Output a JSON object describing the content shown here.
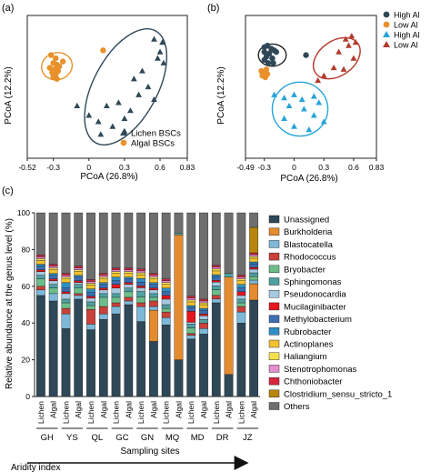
{
  "colors": {
    "lichen": "#2f4858",
    "algal": "#e8902a",
    "high_al": "#26a4d8",
    "low_al": "#b23a2c",
    "axis": "#222222"
  },
  "chart_data": [
    {
      "type": "scatter",
      "panel_label": "(a)",
      "xlabel": "PCoA (26.8%)",
      "ylabel": "PCoA (12.2%)",
      "xlim": [
        -0.52,
        0.83
      ],
      "ylim": [
        -0.45,
        0.45
      ],
      "xticks": [
        -0.52,
        -0.3,
        0,
        0.3,
        0.6,
        0.83
      ],
      "xtick_labels": [
        "-0.52",
        "-0.3",
        "0",
        "0.3",
        "0.6",
        "0.83"
      ],
      "legend_position": "bottom-right",
      "legend": [
        "Lichen BSCs",
        "Algal BSCs"
      ],
      "series": [
        {
          "name": "Lichen BSCs",
          "marker": "triangle",
          "color": "#2f4858",
          "points": [
            [
              0.55,
              0.3
            ],
            [
              0.62,
              0.28
            ],
            [
              0.6,
              0.22
            ],
            [
              0.58,
              0.18
            ],
            [
              0.63,
              0.15
            ],
            [
              0.45,
              0.1
            ],
            [
              0.38,
              0.05
            ],
            [
              0.5,
              0.0
            ],
            [
              0.42,
              -0.05
            ],
            [
              0.55,
              -0.08
            ],
            [
              0.35,
              -0.15
            ],
            [
              0.25,
              -0.1
            ],
            [
              0.15,
              -0.12
            ],
            [
              0.3,
              -0.2
            ],
            [
              0.2,
              -0.25
            ],
            [
              0.08,
              -0.22
            ],
            [
              0.0,
              -0.18
            ],
            [
              -0.1,
              -0.12
            ],
            [
              0.1,
              -0.3
            ],
            [
              0.3,
              -0.28
            ]
          ]
        },
        {
          "name": "Algal BSCs",
          "marker": "circle",
          "color": "#e8902a",
          "points": [
            [
              -0.32,
              0.2
            ],
            [
              -0.28,
              0.18
            ],
            [
              -0.3,
              0.15
            ],
            [
              -0.27,
              0.14
            ],
            [
              -0.33,
              0.12
            ],
            [
              -0.29,
              0.11
            ],
            [
              -0.25,
              0.13
            ],
            [
              -0.31,
              0.09
            ],
            [
              -0.28,
              0.08
            ],
            [
              -0.26,
              0.1
            ],
            [
              -0.3,
              0.06
            ],
            [
              -0.27,
              0.05
            ],
            [
              -0.22,
              0.16
            ],
            [
              0.12,
              0.23
            ]
          ]
        }
      ],
      "ellipses": [
        {
          "color": "#e8902a",
          "cx": -0.27,
          "cy": 0.13,
          "rx": 0.13,
          "ry": 0.085,
          "angle": -15
        },
        {
          "color": "#2f4858",
          "cx": 0.31,
          "cy": 0.0,
          "rx": 0.27,
          "ry": 0.4,
          "angle": 28
        }
      ]
    },
    {
      "type": "scatter",
      "panel_label": "(b)",
      "xlabel": "PCoA (26.8%)",
      "ylabel": "PCoA (12.2%)",
      "xlim": [
        -0.49,
        0.83
      ],
      "ylim": [
        -0.45,
        0.45
      ],
      "xticks": [
        -0.49,
        -0.3,
        0,
        0.3,
        0.6,
        0.83
      ],
      "xtick_labels": [
        "-0.49",
        "-0.3",
        "0",
        "0.3",
        "0.6",
        "0.83"
      ],
      "legend_position": "top-right",
      "legend": [
        "High Al",
        "Low Al",
        "High Al",
        "Low Al"
      ],
      "series": [
        {
          "name": "High Al",
          "marker": "circle",
          "color": "#2f4858",
          "points": [
            [
              -0.3,
              0.25
            ],
            [
              -0.27,
              0.26
            ],
            [
              -0.23,
              0.24
            ],
            [
              -0.3,
              0.22
            ],
            [
              -0.25,
              0.21
            ],
            [
              -0.2,
              0.23
            ],
            [
              -0.28,
              0.19
            ],
            [
              -0.22,
              0.18
            ],
            [
              -0.3,
              0.17
            ],
            [
              -0.18,
              0.22
            ],
            [
              -0.26,
              0.15
            ],
            [
              -0.21,
              0.15
            ],
            [
              0.12,
              0.2
            ]
          ]
        },
        {
          "name": "Low Al",
          "marker": "circle",
          "color": "#e8902a",
          "points": [
            [
              -0.33,
              0.1
            ],
            [
              -0.3,
              0.09
            ],
            [
              -0.28,
              0.11
            ],
            [
              -0.32,
              0.07
            ],
            [
              -0.29,
              0.06
            ],
            [
              -0.27,
              0.08
            ]
          ]
        },
        {
          "name": "High Al",
          "marker": "triangle",
          "color": "#26a4d8",
          "points": [
            [
              -0.2,
              -0.05
            ],
            [
              -0.1,
              -0.07
            ],
            [
              0.0,
              -0.05
            ],
            [
              0.08,
              -0.08
            ],
            [
              0.2,
              -0.06
            ],
            [
              0.25,
              -0.1
            ],
            [
              -0.05,
              -0.12
            ],
            [
              0.1,
              -0.14
            ],
            [
              0.2,
              -0.18
            ],
            [
              -0.1,
              -0.2
            ],
            [
              0.0,
              -0.25
            ],
            [
              0.15,
              -0.27
            ],
            [
              0.3,
              -0.22
            ]
          ]
        },
        {
          "name": "Low Al",
          "marker": "triangle",
          "color": "#b23a2c",
          "points": [
            [
              0.58,
              0.32
            ],
            [
              0.52,
              0.3
            ],
            [
              0.62,
              0.28
            ],
            [
              0.55,
              0.26
            ],
            [
              0.45,
              0.22
            ],
            [
              0.6,
              0.18
            ],
            [
              0.4,
              0.12
            ],
            [
              0.5,
              0.11
            ],
            [
              0.3,
              0.07
            ],
            [
              0.24,
              0.04
            ]
          ]
        }
      ],
      "ellipses": [
        {
          "color": "#222222",
          "cx": -0.22,
          "cy": 0.2,
          "rx": 0.14,
          "ry": 0.07,
          "angle": 0
        },
        {
          "color": "#b23a2c",
          "cx": 0.43,
          "cy": 0.18,
          "rx": 0.26,
          "ry": 0.11,
          "angle": -35
        },
        {
          "color": "#26a4d8",
          "cx": 0.06,
          "cy": -0.14,
          "rx": 0.28,
          "ry": 0.17,
          "angle": 0
        }
      ]
    },
    {
      "type": "bar",
      "stacked": true,
      "panel_label": "(c)",
      "ylabel": "Relative abundance at the genus level (%)",
      "xlabel": "Sampling sites",
      "arrow_label": "Aridity index",
      "ylim": [
        0,
        100
      ],
      "yticks": [
        0,
        20,
        40,
        60,
        80,
        100
      ],
      "legend_position": "right",
      "groups": [
        "GH",
        "YS",
        "QL",
        "GC",
        "GN",
        "MQ",
        "MD",
        "DR",
        "JZ"
      ],
      "categories": [
        "Lichen",
        "Algal",
        "Lichen",
        "Algal",
        "Lichen",
        "Algal",
        "Lichen",
        "Algal",
        "Lichen",
        "Algal",
        "Lichen",
        "Algal",
        "Lichen",
        "Algal",
        "Lichen",
        "Algal",
        "Lichen",
        "Algal"
      ],
      "series": [
        {
          "name": "Unassigned",
          "color": "#2f4858",
          "values": [
            55,
            52,
            37,
            53,
            36,
            42,
            45,
            50,
            40,
            30,
            39,
            20,
            31,
            34,
            50,
            12,
            40,
            53
          ]
        },
        {
          "name": "Burkholderia",
          "color": "#e48b30",
          "values": [
            0,
            0,
            0,
            0,
            0,
            0,
            0,
            0,
            0,
            17,
            0,
            68,
            0,
            0,
            0,
            53,
            0,
            9
          ]
        },
        {
          "name": "Blastocatella",
          "color": "#7db8d8",
          "values": [
            3,
            4,
            8,
            2,
            3,
            3,
            4,
            2,
            8,
            2,
            4,
            0,
            2,
            3,
            2,
            0,
            6,
            2
          ]
        },
        {
          "name": "Rhodococcus",
          "color": "#c9413a",
          "values": [
            2,
            0,
            3,
            1,
            8,
            4,
            2,
            2,
            2,
            3,
            3,
            0,
            1,
            3,
            2,
            0,
            3,
            0
          ]
        },
        {
          "name": "Bryobacter",
          "color": "#6dbd8a",
          "values": [
            4,
            3,
            3,
            3,
            2,
            5,
            3,
            3,
            3,
            2,
            2,
            0,
            3,
            0,
            3,
            0,
            2,
            2
          ]
        },
        {
          "name": "Sphingomonas",
          "color": "#4fa0a0",
          "values": [
            2,
            2,
            2,
            2,
            2,
            2,
            2,
            2,
            3,
            2,
            2,
            1,
            2,
            2,
            2,
            2,
            2,
            2
          ]
        },
        {
          "name": "Pseudonocardia",
          "color": "#a6c8e0",
          "values": [
            2,
            2,
            3,
            1,
            2,
            2,
            3,
            2,
            2,
            2,
            3,
            0,
            1,
            2,
            2,
            0,
            2,
            2
          ]
        },
        {
          "name": "Mucilaginibacter",
          "color": "#e5161d",
          "values": [
            1,
            1,
            1,
            1,
            1,
            1,
            2,
            1,
            1,
            1,
            2,
            0,
            6,
            1,
            1,
            0,
            2,
            1
          ]
        },
        {
          "name": "Methylobacterium",
          "color": "#3c6eb0",
          "values": [
            2,
            2,
            2,
            2,
            2,
            2,
            2,
            2,
            2,
            2,
            2,
            0,
            2,
            2,
            2,
            0,
            2,
            2
          ]
        },
        {
          "name": "Rubrobacter",
          "color": "#2f8fc5",
          "values": [
            1,
            1,
            3,
            1,
            2,
            1,
            2,
            1,
            2,
            1,
            2,
            0,
            1,
            1,
            1,
            0,
            2,
            1
          ]
        },
        {
          "name": "Actinoplanes",
          "color": "#f2c230",
          "values": [
            2,
            2,
            2,
            2,
            2,
            2,
            2,
            2,
            2,
            2,
            2,
            0,
            2,
            2,
            2,
            0,
            2,
            2
          ]
        },
        {
          "name": "Haliangium",
          "color": "#f6e04a",
          "values": [
            1,
            1,
            1,
            1,
            1,
            1,
            1,
            1,
            1,
            1,
            1,
            0,
            1,
            1,
            1,
            0,
            1,
            1
          ]
        },
        {
          "name": "Stenotrophomonas",
          "color": "#e28fcf",
          "values": [
            1,
            1,
            1,
            1,
            1,
            1,
            1,
            1,
            1,
            1,
            1,
            0,
            1,
            1,
            1,
            0,
            1,
            1
          ]
        },
        {
          "name": "Chthoniobacter",
          "color": "#d7263d",
          "values": [
            1,
            1,
            1,
            1,
            1,
            1,
            1,
            1,
            1,
            1,
            1,
            0,
            1,
            1,
            1,
            0,
            1,
            1
          ]
        },
        {
          "name": "Clostridium_sensu_stricto_1",
          "color": "#b8860b",
          "values": [
            0,
            0,
            0,
            0,
            0,
            0,
            0,
            0,
            0,
            0,
            0,
            0,
            0,
            0,
            0,
            0,
            0,
            14
          ]
        },
        {
          "name": "Others",
          "color": "#6e6e6e",
          "values": [
            23,
            28,
            33,
            29,
            36,
            33,
            30,
            30,
            30,
            33,
            36,
            11,
            45,
            47,
            28,
            33,
            34,
            8
          ]
        }
      ]
    }
  ]
}
